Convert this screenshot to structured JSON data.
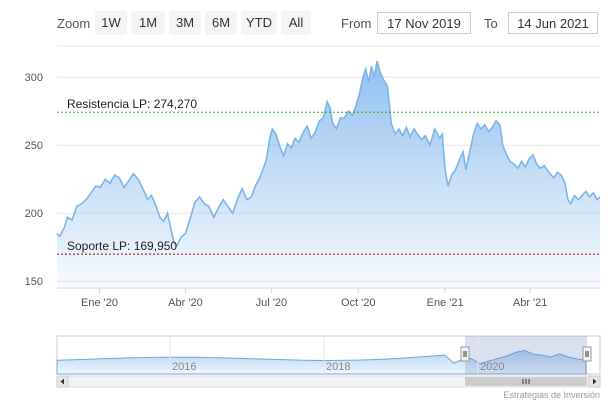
{
  "toolbar": {
    "zoom_label": "Zoom",
    "buttons": [
      "1W",
      "1M",
      "3M",
      "6M",
      "YTD",
      "All"
    ],
    "from_label": "From",
    "from_value": "17 Nov 2019",
    "to_label": "To",
    "to_value": "14 Jun 2021"
  },
  "credits": "Estrategias de Inversión",
  "navigator": {
    "years": [
      "2016",
      "2018",
      "2020"
    ]
  },
  "chart_data": {
    "type": "area",
    "x_ticks": [
      "Ene '20",
      "Abr '20",
      "Jul '20",
      "Oct '20",
      "Ene '21",
      "Abr '21"
    ],
    "y_ticks": [
      150,
      200,
      250,
      300
    ],
    "ylim": [
      145,
      320
    ],
    "xrange": [
      "2019-11-17",
      "2021-06-14"
    ],
    "grid": true,
    "lines": [
      {
        "label": "Resistencia LP: 274,270",
        "value": 274.27,
        "color": "#22aa22"
      },
      {
        "label": "Soporte LP: 169,950",
        "value": 169.95,
        "color": "#990000"
      }
    ],
    "series": [
      {
        "color": "#7cb5ec",
        "points": [
          [
            "2019-11-17",
            185
          ],
          [
            "2019-11-20",
            183
          ],
          [
            "2019-11-25",
            190
          ],
          [
            "2019-11-28",
            197
          ],
          [
            "2019-12-03",
            195
          ],
          [
            "2019-12-08",
            205
          ],
          [
            "2019-12-13",
            207
          ],
          [
            "2019-12-18",
            210
          ],
          [
            "2019-12-23",
            215
          ],
          [
            "2019-12-28",
            220
          ],
          [
            "2020-01-02",
            219
          ],
          [
            "2020-01-07",
            225
          ],
          [
            "2020-01-12",
            222
          ],
          [
            "2020-01-17",
            228
          ],
          [
            "2020-01-22",
            226
          ],
          [
            "2020-01-27",
            219
          ],
          [
            "2020-02-01",
            224
          ],
          [
            "2020-02-06",
            229
          ],
          [
            "2020-02-11",
            225
          ],
          [
            "2020-02-16",
            218
          ],
          [
            "2020-02-21",
            210
          ],
          [
            "2020-02-25",
            213
          ],
          [
            "2020-03-01",
            205
          ],
          [
            "2020-03-05",
            197
          ],
          [
            "2020-03-09",
            194
          ],
          [
            "2020-03-13",
            200
          ],
          [
            "2020-03-17",
            187
          ],
          [
            "2020-03-20",
            178
          ],
          [
            "2020-03-23",
            176
          ],
          [
            "2020-03-27",
            182
          ],
          [
            "2020-04-01",
            185
          ],
          [
            "2020-04-06",
            196
          ],
          [
            "2020-04-11",
            208
          ],
          [
            "2020-04-16",
            212
          ],
          [
            "2020-04-21",
            207
          ],
          [
            "2020-04-26",
            205
          ],
          [
            "2020-05-01",
            197
          ],
          [
            "2020-05-06",
            204
          ],
          [
            "2020-05-11",
            210
          ],
          [
            "2020-05-16",
            205
          ],
          [
            "2020-05-21",
            200
          ],
          [
            "2020-05-26",
            210
          ],
          [
            "2020-05-31",
            218
          ],
          [
            "2020-06-05",
            210
          ],
          [
            "2020-06-10",
            212
          ],
          [
            "2020-06-14",
            220
          ],
          [
            "2020-06-18",
            225
          ],
          [
            "2020-06-22",
            232
          ],
          [
            "2020-06-26",
            240
          ],
          [
            "2020-06-29",
            254
          ],
          [
            "2020-07-02",
            262
          ],
          [
            "2020-07-06",
            258
          ],
          [
            "2020-07-10",
            249
          ],
          [
            "2020-07-14",
            242
          ],
          [
            "2020-07-18",
            251
          ],
          [
            "2020-07-22",
            248
          ],
          [
            "2020-07-26",
            255
          ],
          [
            "2020-07-30",
            252
          ],
          [
            "2020-08-04",
            260
          ],
          [
            "2020-08-08",
            264
          ],
          [
            "2020-08-12",
            255
          ],
          [
            "2020-08-16",
            259
          ],
          [
            "2020-08-21",
            268
          ],
          [
            "2020-08-25",
            270
          ],
          [
            "2020-08-29",
            282
          ],
          [
            "2020-09-01",
            278
          ],
          [
            "2020-09-04",
            266
          ],
          [
            "2020-09-08",
            262
          ],
          [
            "2020-09-12",
            270
          ],
          [
            "2020-09-16",
            270
          ],
          [
            "2020-09-21",
            275
          ],
          [
            "2020-09-25",
            272
          ],
          [
            "2020-09-29",
            280
          ],
          [
            "2020-10-02",
            287
          ],
          [
            "2020-10-06",
            300
          ],
          [
            "2020-10-09",
            306
          ],
          [
            "2020-10-12",
            296
          ],
          [
            "2020-10-15",
            308
          ],
          [
            "2020-10-18",
            300
          ],
          [
            "2020-10-21",
            312
          ],
          [
            "2020-10-24",
            304
          ],
          [
            "2020-10-28",
            298
          ],
          [
            "2020-11-01",
            293
          ],
          [
            "2020-11-05",
            266
          ],
          [
            "2020-11-09",
            258
          ],
          [
            "2020-11-13",
            262
          ],
          [
            "2020-11-17",
            257
          ],
          [
            "2020-11-21",
            263
          ],
          [
            "2020-11-25",
            256
          ],
          [
            "2020-11-29",
            262
          ],
          [
            "2020-12-03",
            258
          ],
          [
            "2020-12-07",
            254
          ],
          [
            "2020-12-11",
            257
          ],
          [
            "2020-12-16",
            250
          ],
          [
            "2020-12-21",
            262
          ],
          [
            "2020-12-26",
            255
          ],
          [
            "2020-12-29",
            258
          ],
          [
            "2021-01-01",
            232
          ],
          [
            "2021-01-04",
            220
          ],
          [
            "2021-01-08",
            228
          ],
          [
            "2021-01-12",
            232
          ],
          [
            "2021-01-16",
            239
          ],
          [
            "2021-01-20",
            245
          ],
          [
            "2021-01-23",
            232
          ],
          [
            "2021-01-27",
            245
          ],
          [
            "2021-01-31",
            258
          ],
          [
            "2021-02-04",
            266
          ],
          [
            "2021-02-08",
            262
          ],
          [
            "2021-02-12",
            265
          ],
          [
            "2021-02-16",
            260
          ],
          [
            "2021-02-20",
            263
          ],
          [
            "2021-02-24",
            268
          ],
          [
            "2021-02-28",
            265
          ],
          [
            "2021-03-03",
            250
          ],
          [
            "2021-03-07",
            243
          ],
          [
            "2021-03-11",
            238
          ],
          [
            "2021-03-15",
            236
          ],
          [
            "2021-03-19",
            233
          ],
          [
            "2021-03-23",
            238
          ],
          [
            "2021-03-27",
            234
          ],
          [
            "2021-03-31",
            240
          ],
          [
            "2021-04-04",
            243
          ],
          [
            "2021-04-08",
            236
          ],
          [
            "2021-04-12",
            233
          ],
          [
            "2021-04-16",
            235
          ],
          [
            "2021-04-21",
            230
          ],
          [
            "2021-04-26",
            226
          ],
          [
            "2021-04-30",
            230
          ],
          [
            "2021-05-04",
            228
          ],
          [
            "2021-05-08",
            222
          ],
          [
            "2021-05-11",
            210
          ],
          [
            "2021-05-14",
            207
          ],
          [
            "2021-05-18",
            213
          ],
          [
            "2021-05-22",
            210
          ],
          [
            "2021-05-26",
            213
          ],
          [
            "2021-05-30",
            216
          ],
          [
            "2021-06-03",
            212
          ],
          [
            "2021-06-07",
            215
          ],
          [
            "2021-06-11",
            210
          ],
          [
            "2021-06-14",
            212
          ]
        ]
      }
    ]
  }
}
